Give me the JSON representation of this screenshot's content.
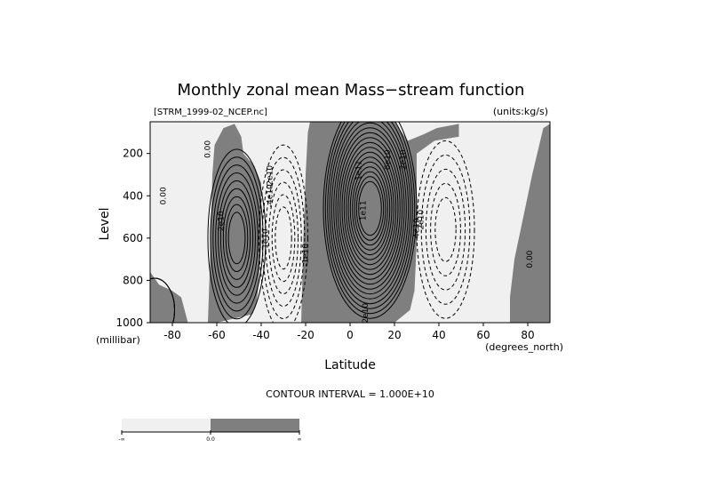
{
  "chart_data": {
    "type": "contour",
    "title": "Monthly zonal mean Mass−stream function",
    "file_label": "[STRM_1999-02_NCEP.nc]",
    "units_label": "(units:kg/s)",
    "xlabel": "Latitude",
    "x_unit": "(degrees_north)",
    "ylabel": "Level",
    "y_unit": "(millibar)",
    "xlim": [
      -90,
      90
    ],
    "ylim": [
      1000,
      50
    ],
    "x_ticks": [
      -80,
      -60,
      -40,
      -20,
      0,
      20,
      40,
      60,
      80
    ],
    "y_ticks": [
      200,
      400,
      600,
      800,
      1000
    ],
    "contour_interval_text": "CONTOUR INTERVAL = 1.000E+10",
    "contour_interval": 10000000000,
    "shading": {
      "negative": "#f0f0f0",
      "positive": "#7f7f7f"
    },
    "colorbar_labels": [
      "-∞",
      "0.0",
      "∞"
    ],
    "contour_labels": [
      {
        "text": "0.00",
        "x": -63,
        "y": 180
      },
      {
        "text": "0.00",
        "x": -83,
        "y": 400
      },
      {
        "text": "2e10",
        "x": -57,
        "y": 520
      },
      {
        "text": "-2e10",
        "x": -35,
        "y": 310
      },
      {
        "text": "-4e10",
        "x": -35,
        "y": 400
      },
      {
        "text": "-1e10",
        "x": -37,
        "y": 610
      },
      {
        "text": "-1e10",
        "x": -19,
        "y": 680
      },
      {
        "text": "1e11",
        "x": 5,
        "y": 280
      },
      {
        "text": "1e11",
        "x": 7,
        "y": 470
      },
      {
        "text": "2e10",
        "x": 25,
        "y": 230
      },
      {
        "text": "6e10",
        "x": 18,
        "y": 230
      },
      {
        "text": "2e10",
        "x": 8,
        "y": 955
      },
      {
        "text": "-2e10",
        "x": 33,
        "y": 520
      },
      {
        "text": "-4e10",
        "x": 31,
        "y": 560
      },
      {
        "text": "0.00",
        "x": 82,
        "y": 700
      }
    ],
    "cells": [
      {
        "name": "south-polar-cell-positive",
        "sign": "positive",
        "center": [
          -88,
          940
        ],
        "x_half": 9,
        "y_half": 150,
        "peak": 30000000000,
        "ring_start": 1
      },
      {
        "name": "southern-ferrel-positive",
        "sign": "positive",
        "center": [
          -51,
          600
        ],
        "x_half": 13,
        "y_half": 420,
        "peak": 90000000000,
        "ring_start": 0.2
      },
      {
        "name": "southern-hadley-negative",
        "sign": "negative",
        "center": [
          -30,
          600
        ],
        "x_half": 11,
        "y_half": 440,
        "peak": 60000000000,
        "ring_start": 0.2
      },
      {
        "name": "northern-hadley-positive",
        "sign": "positive",
        "center": [
          9,
          460
        ],
        "x_half": 21,
        "y_half": 520,
        "peak": 180000000000,
        "ring_start": 0.2
      },
      {
        "name": "northern-ferrel-negative",
        "sign": "negative",
        "center": [
          43,
          560
        ],
        "x_half": 13,
        "y_half": 420,
        "peak": 50000000000,
        "ring_start": 0.2
      }
    ]
  }
}
